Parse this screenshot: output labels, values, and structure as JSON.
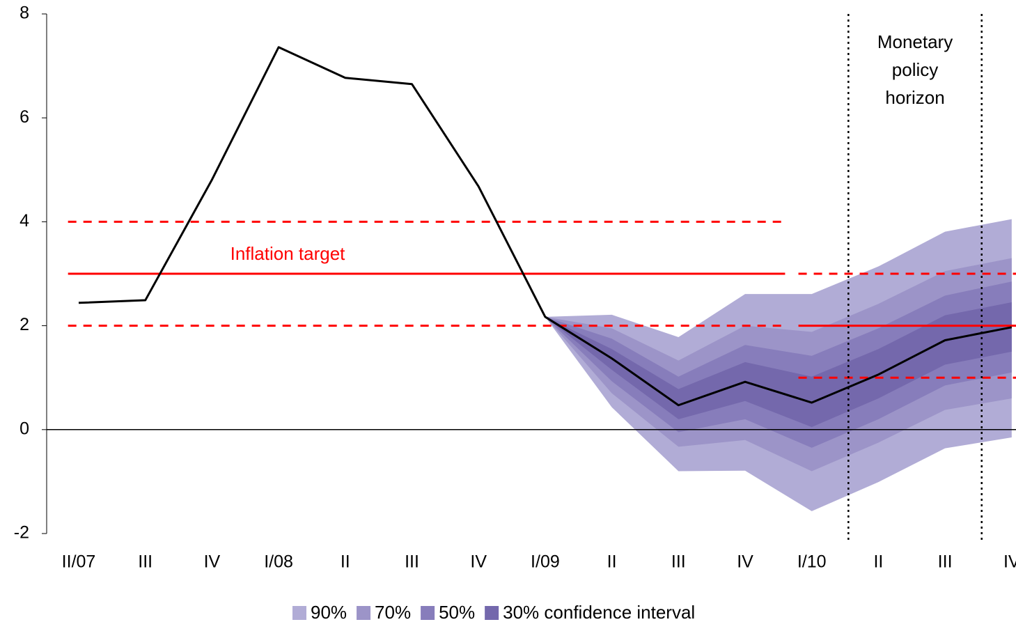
{
  "chart_data": {
    "type": "fan",
    "categories": [
      "II/07",
      "III",
      "IV",
      "I/08",
      "II",
      "III",
      "IV",
      "I/09",
      "II",
      "III",
      "IV",
      "I/10",
      "II",
      "III",
      "IV"
    ],
    "values": [
      2.44,
      2.49,
      4.81,
      7.36,
      6.77,
      6.65,
      4.68,
      2.17,
      1.37,
      0.47,
      0.92,
      0.52,
      1.06,
      1.72,
      1.97
    ],
    "line_color": "#000000",
    "bands": [
      {
        "name": "90%",
        "color": "#b1acd6",
        "lower": [
          null,
          null,
          null,
          null,
          null,
          null,
          null,
          2.17,
          0.43,
          -0.8,
          -0.79,
          -1.57,
          -1.01,
          -0.36,
          -0.15
        ],
        "upper": [
          null,
          null,
          null,
          null,
          null,
          null,
          null,
          2.17,
          2.21,
          1.78,
          2.61,
          2.61,
          3.14,
          3.81,
          4.05
        ]
      },
      {
        "name": "70%",
        "color": "#9c94c8",
        "lower": [
          null,
          null,
          null,
          null,
          null,
          null,
          null,
          2.17,
          0.7,
          -0.33,
          -0.2,
          -0.8,
          -0.25,
          0.38,
          0.6
        ],
        "upper": [
          null,
          null,
          null,
          null,
          null,
          null,
          null,
          2.17,
          1.95,
          1.33,
          2.0,
          1.88,
          2.42,
          3.05,
          3.3
        ]
      },
      {
        "name": "50%",
        "color": "#877dbb",
        "lower": [
          null,
          null,
          null,
          null,
          null,
          null,
          null,
          2.17,
          0.93,
          -0.05,
          0.2,
          -0.35,
          0.2,
          0.85,
          1.1
        ],
        "upper": [
          null,
          null,
          null,
          null,
          null,
          null,
          null,
          2.17,
          1.75,
          1.02,
          1.63,
          1.42,
          1.95,
          2.58,
          2.85
        ]
      },
      {
        "name": "30% confidence interval",
        "color": "#7468ac",
        "lower": [
          null,
          null,
          null,
          null,
          null,
          null,
          null,
          2.17,
          1.15,
          0.2,
          0.55,
          0.05,
          0.6,
          1.25,
          1.5
        ],
        "upper": [
          null,
          null,
          null,
          null,
          null,
          null,
          null,
          2.17,
          1.55,
          0.78,
          1.3,
          1.02,
          1.55,
          2.2,
          2.45
        ]
      }
    ],
    "target_bands": [
      {
        "target": 3,
        "lower": 2,
        "upper": 4,
        "x": [
          -0.16,
          10.6
        ]
      },
      {
        "target": 2,
        "lower": 1,
        "upper": 3,
        "x": [
          10.8,
          14.1
        ]
      }
    ],
    "target_label": "Inflation target",
    "target_color": "#ff0000",
    "horizon": [
      11.55,
      13.55
    ],
    "horizon_label": "Monetary policy horizon",
    "ylim": [
      -2,
      8
    ],
    "yticks": [
      -2,
      0,
      2,
      4,
      6,
      8
    ]
  }
}
